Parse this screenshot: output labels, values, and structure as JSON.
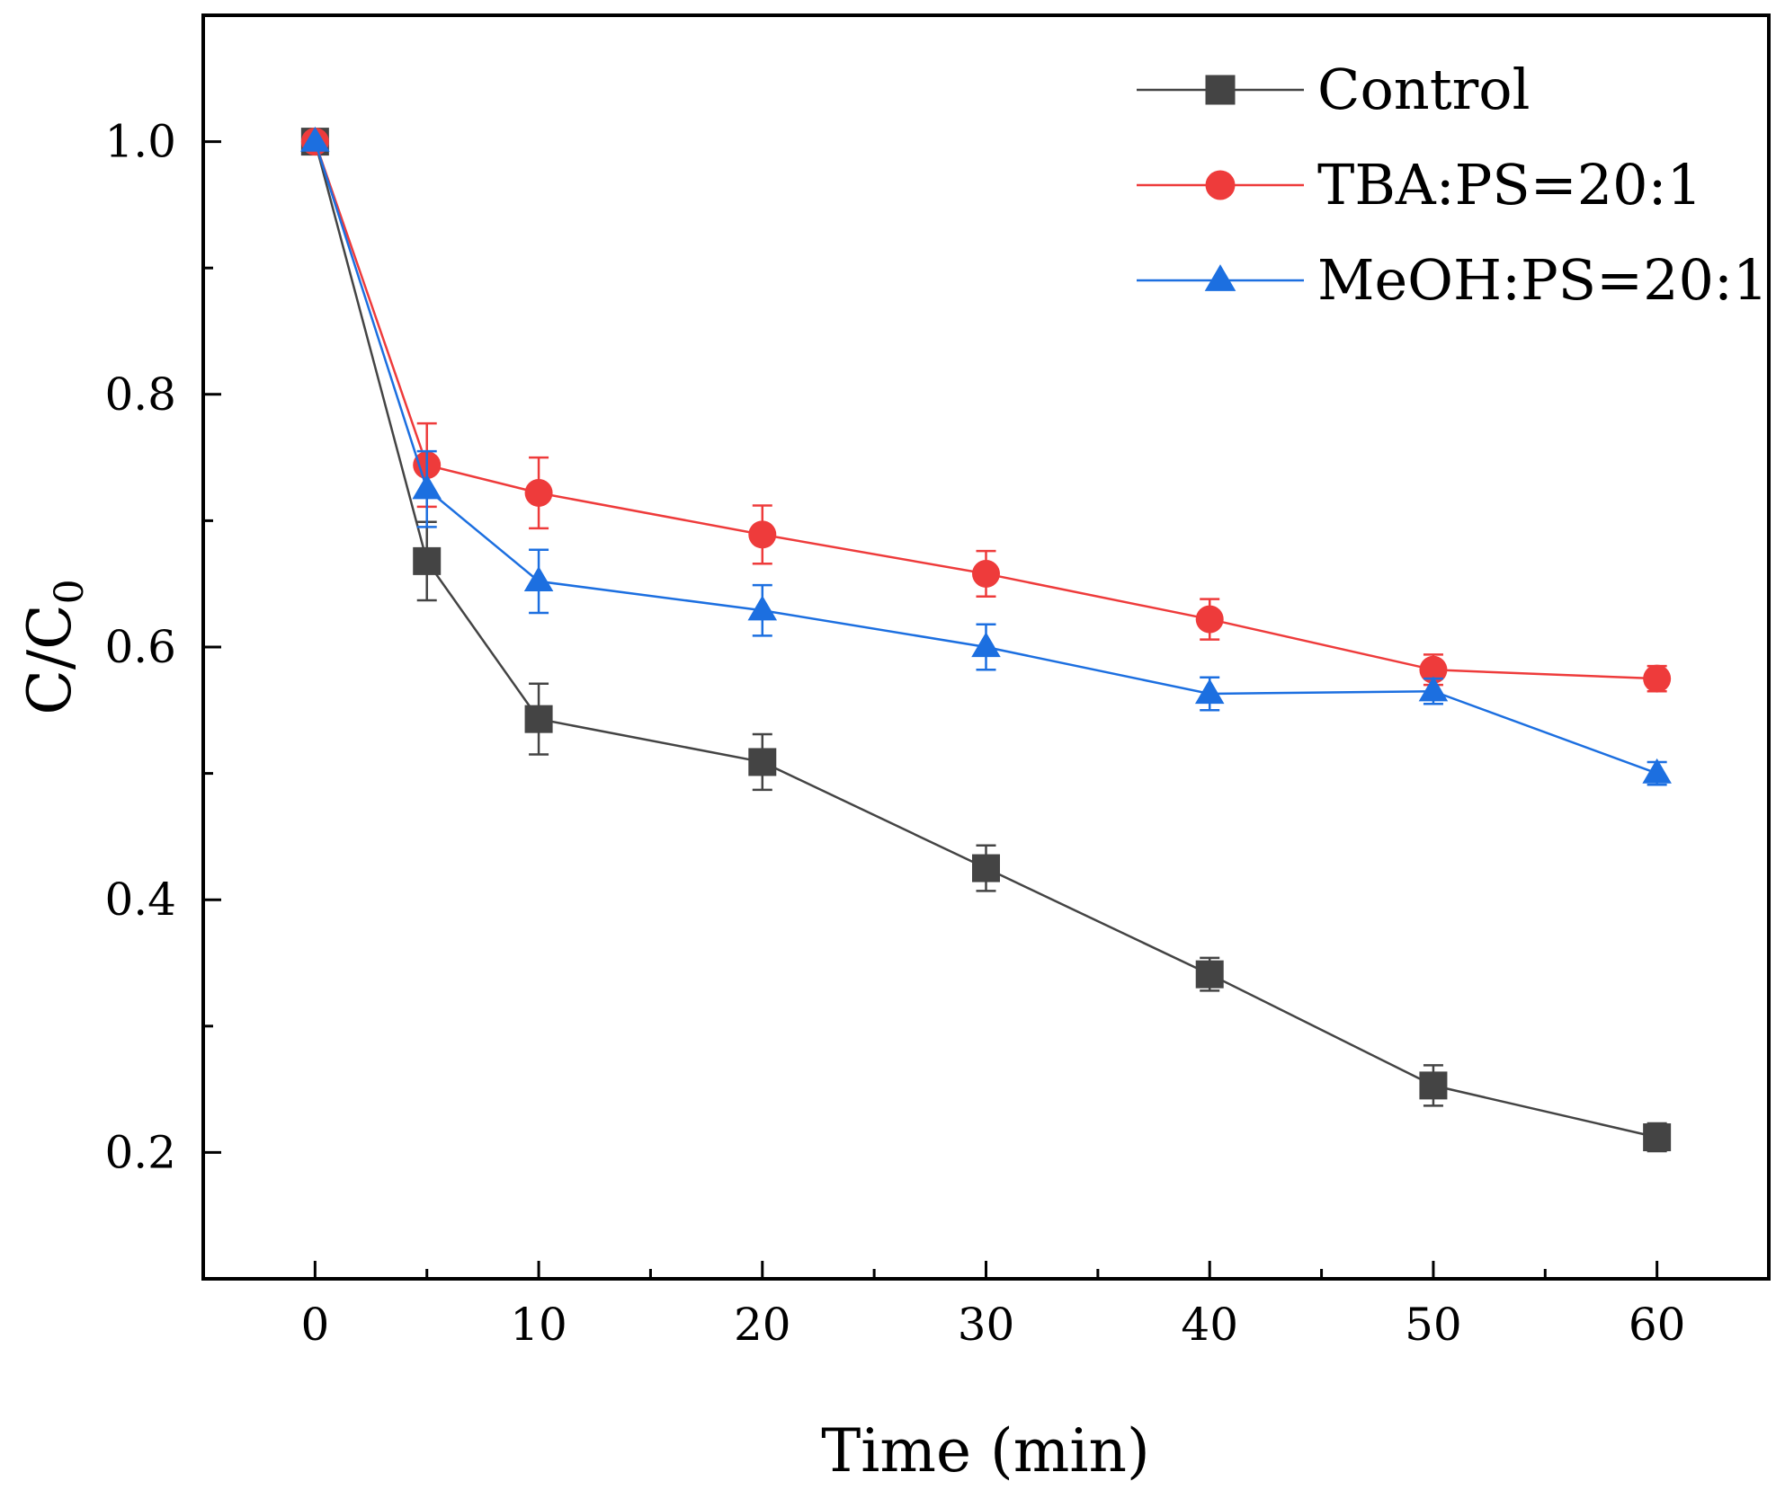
{
  "chart_data": {
    "type": "line",
    "xlabel": "Time (min)",
    "ylabel": "C/C",
    "ylabel_subscript": "0",
    "xlim": [
      -5,
      65
    ],
    "ylim": [
      0.1,
      1.1
    ],
    "x_ticks": [
      0,
      10,
      20,
      30,
      40,
      50,
      60
    ],
    "x_minor_ticks": [
      5,
      15,
      25,
      35,
      45,
      55
    ],
    "y_ticks": [
      0.2,
      0.4,
      0.6,
      0.8,
      1.0
    ],
    "x_tick_labels": [
      "0",
      "10",
      "20",
      "30",
      "40",
      "50",
      "60"
    ],
    "y_tick_labels": [
      "0.2",
      "0.4",
      "0.6",
      "0.8",
      "1.0"
    ],
    "x": [
      0,
      5,
      10,
      20,
      30,
      40,
      50,
      60
    ],
    "grid": false,
    "legend_position": "top-right",
    "series": [
      {
        "name": "Control",
        "color": "#444444",
        "marker": "square",
        "values": [
          1.0,
          0.668,
          0.543,
          0.509,
          0.425,
          0.341,
          0.253,
          0.212
        ],
        "errors": [
          0.0,
          0.031,
          0.028,
          0.022,
          0.018,
          0.013,
          0.016,
          0.011
        ]
      },
      {
        "name": "TBA:PS=20:1",
        "color": "#ee3b3b",
        "marker": "circle",
        "values": [
          1.0,
          0.744,
          0.722,
          0.689,
          0.658,
          0.622,
          0.582,
          0.575
        ],
        "errors": [
          0.0,
          0.033,
          0.028,
          0.023,
          0.018,
          0.016,
          0.012,
          0.01
        ]
      },
      {
        "name": "MeOH:PS=20:1",
        "color": "#1c6fe0",
        "marker": "triangle",
        "values": [
          1.0,
          0.725,
          0.652,
          0.629,
          0.6,
          0.563,
          0.565,
          0.5
        ],
        "errors": [
          0.0,
          0.03,
          0.025,
          0.02,
          0.018,
          0.013,
          0.01,
          0.009
        ]
      }
    ]
  }
}
